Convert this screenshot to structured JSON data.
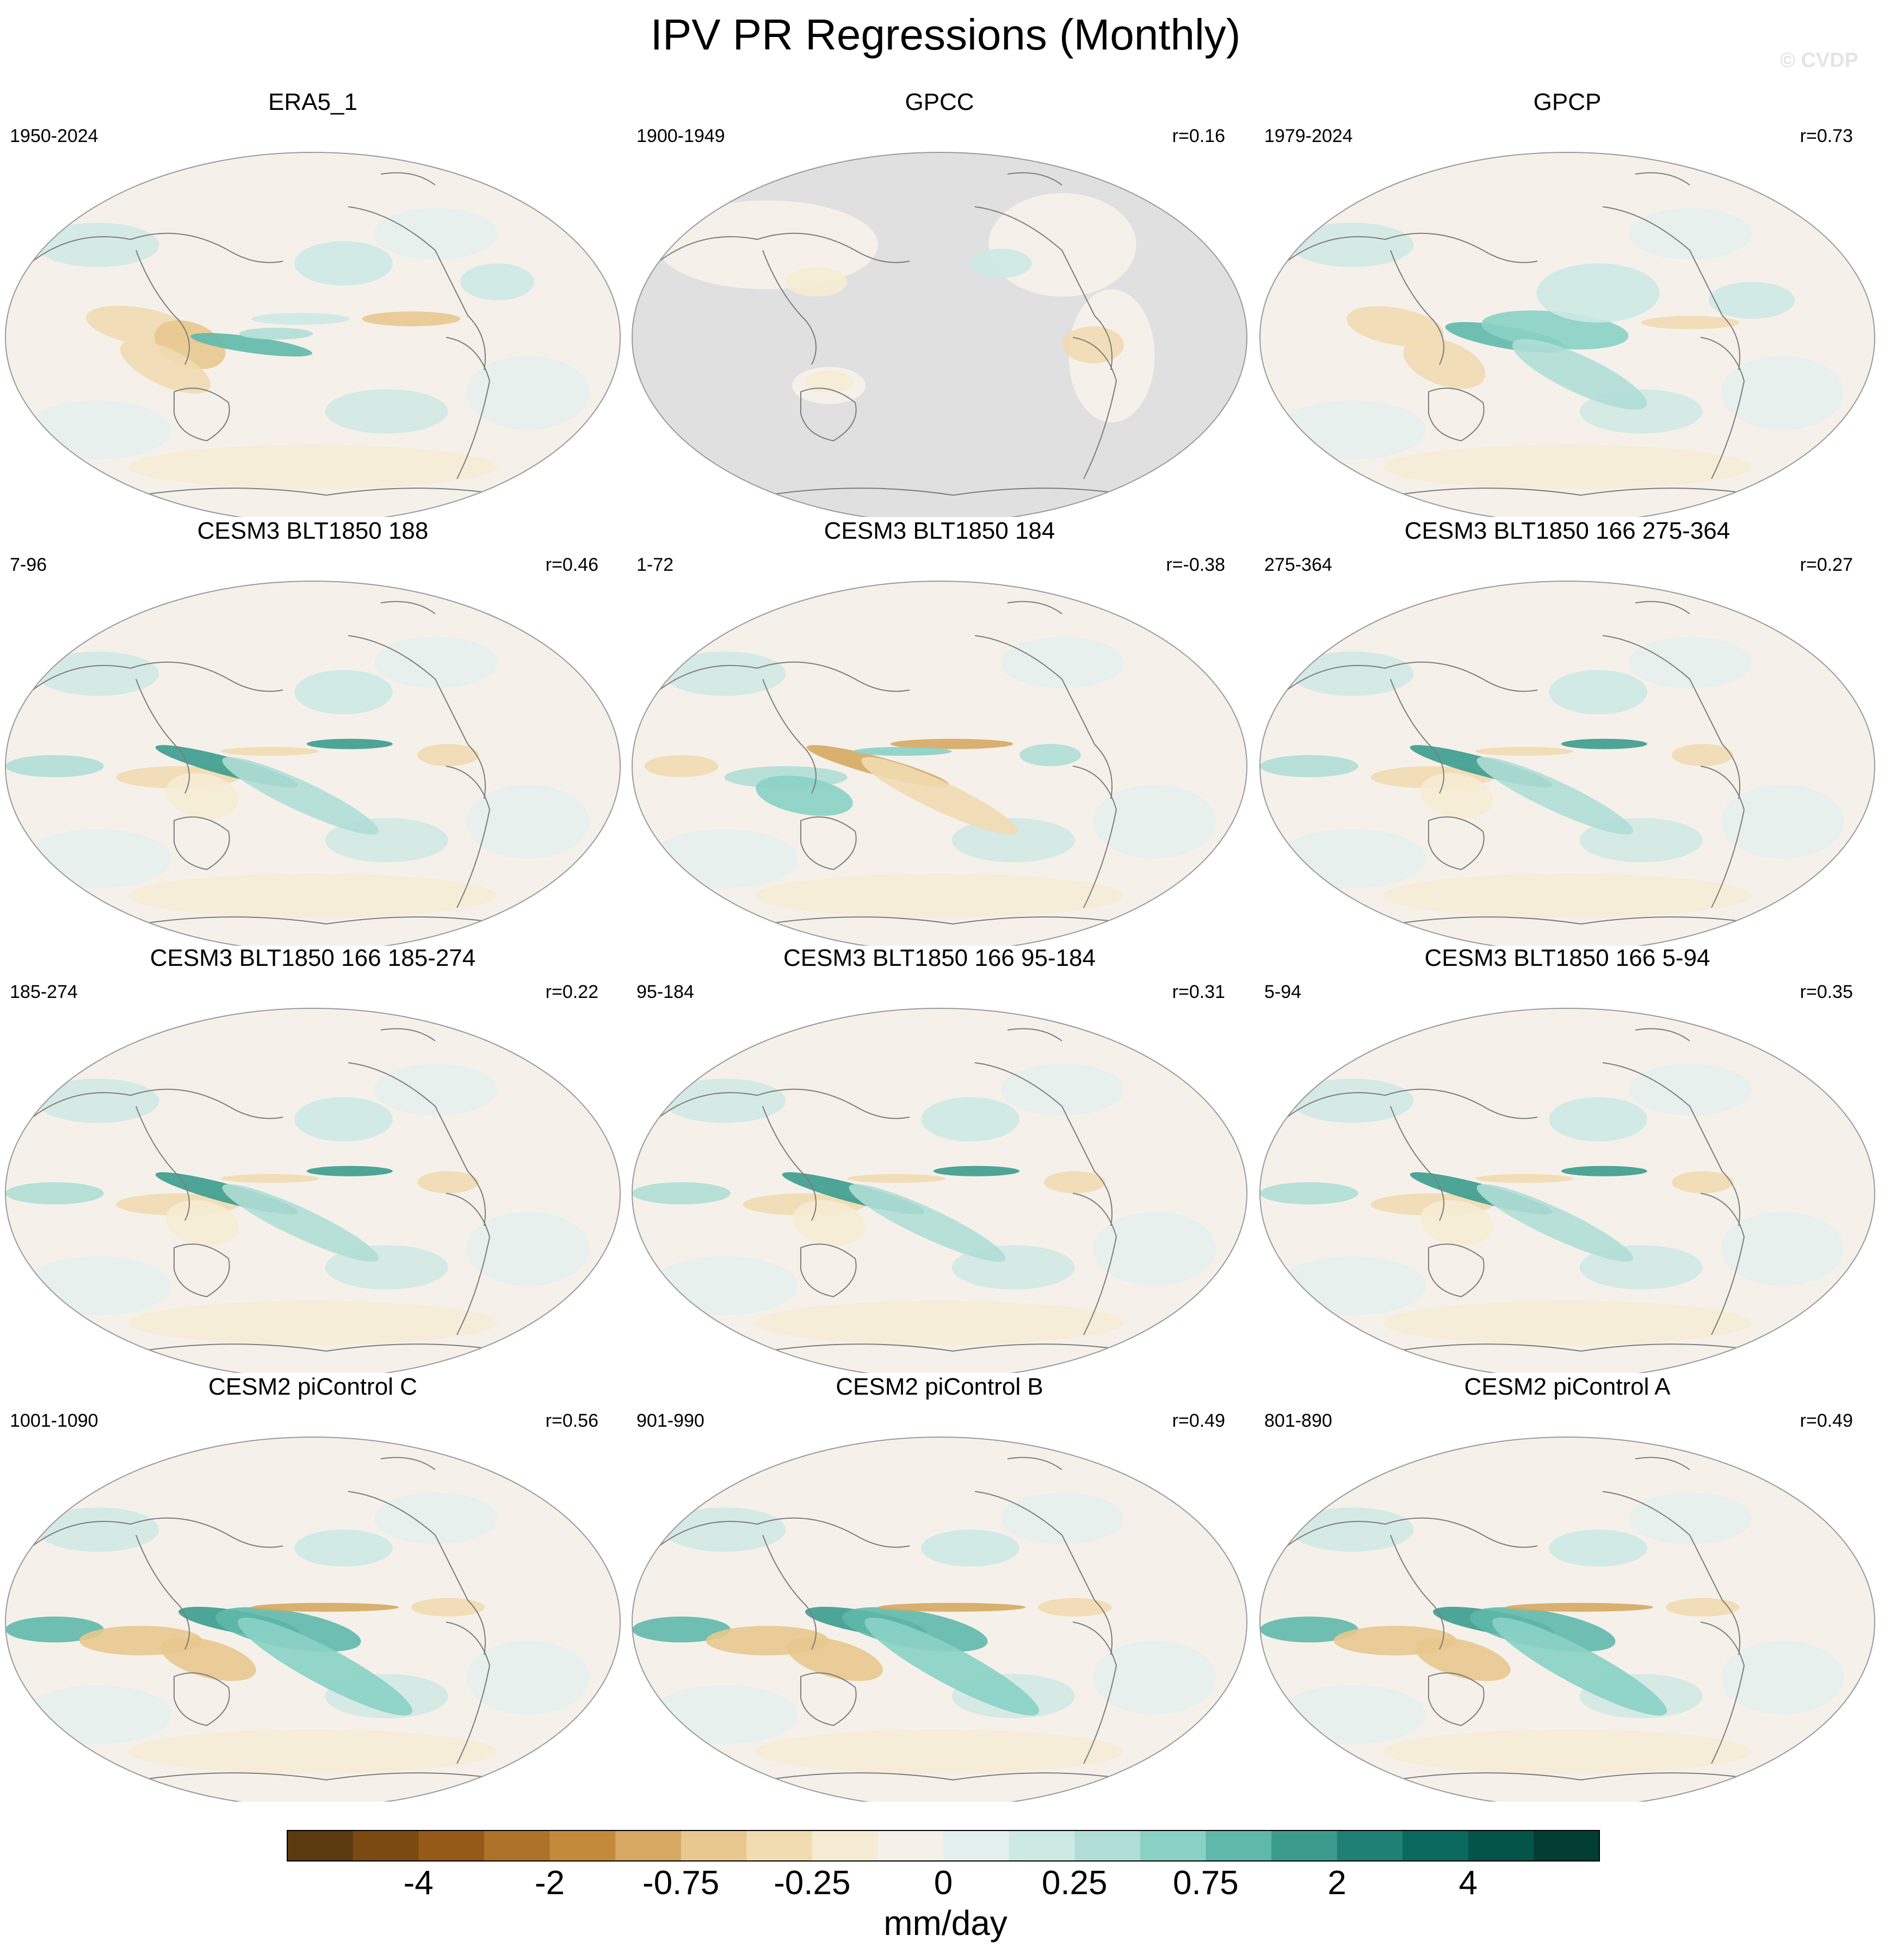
{
  "title": "IPV PR Regressions (Monthly)",
  "watermark": "© CVDP",
  "units": "mm/day",
  "chart_data": {
    "type": "heatmap",
    "projection": "robinson",
    "variable": "precipitation regression",
    "land_mask_color": "#e0e0e0",
    "panels": [
      {
        "title": "ERA5_1",
        "years": "1950-2024",
        "corr": "",
        "masked_ocean": false,
        "pattern": "era5"
      },
      {
        "title": "GPCC",
        "years": "1900-1949",
        "corr": "r=0.16",
        "masked_ocean": true,
        "pattern": "gpcc"
      },
      {
        "title": "GPCP",
        "years": "1979-2024",
        "corr": "r=0.73",
        "masked_ocean": false,
        "pattern": "gpcp"
      },
      {
        "title": "CESM3 BLT1850 188",
        "years": "7-96",
        "corr": "r=0.46",
        "masked_ocean": false,
        "pattern": "model"
      },
      {
        "title": "CESM3 BLT1850 184",
        "years": "1-72",
        "corr": "r=-0.38",
        "masked_ocean": false,
        "pattern": "neg"
      },
      {
        "title": "CESM3 BLT1850 166 275-364",
        "years": "275-364",
        "corr": "r=0.27",
        "masked_ocean": false,
        "pattern": "model"
      },
      {
        "title": "CESM3 BLT1850 166 185-274",
        "years": "185-274",
        "corr": "r=0.22",
        "masked_ocean": false,
        "pattern": "model"
      },
      {
        "title": "CESM3 BLT1850 166 95-184",
        "years": "95-184",
        "corr": "r=0.31",
        "masked_ocean": false,
        "pattern": "model"
      },
      {
        "title": "CESM3 BLT1850 166 5-94",
        "years": "5-94",
        "corr": "r=0.35",
        "masked_ocean": false,
        "pattern": "model"
      },
      {
        "title": "CESM2 piControl C",
        "years": "1001-1090",
        "corr": "r=0.56",
        "masked_ocean": false,
        "pattern": "cesm2"
      },
      {
        "title": "CESM2 piControl B",
        "years": "901-990",
        "corr": "r=0.49",
        "masked_ocean": false,
        "pattern": "cesm2"
      },
      {
        "title": "CESM2 piControl A",
        "years": "801-890",
        "corr": "r=0.49",
        "masked_ocean": false,
        "pattern": "cesm2"
      }
    ],
    "colorbar": {
      "colors": [
        "#5a3a0e",
        "#7a4a12",
        "#955a18",
        "#ad7228",
        "#c48a3c",
        "#d6a862",
        "#e8c88e",
        "#f1dcb2",
        "#f6ecd4",
        "#f5f1ea",
        "#e4f0ee",
        "#cde9e4",
        "#b0ded6",
        "#8ad1c5",
        "#5fb9ab",
        "#3b9c8e",
        "#1f8074",
        "#0a6a5d",
        "#045449",
        "#013d33"
      ],
      "tick_labels": [
        "-4",
        "-2",
        "-0.75",
        "-0.25",
        "0",
        "0.25",
        "0.75",
        "2",
        "4"
      ]
    }
  }
}
